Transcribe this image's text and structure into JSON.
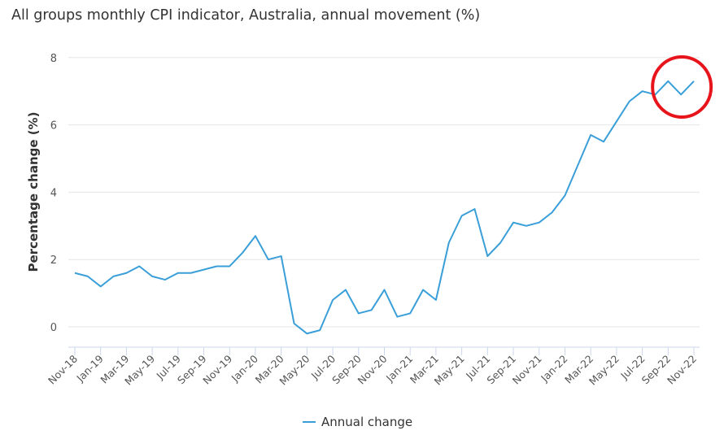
{
  "chart_data": {
    "type": "line",
    "title": "All groups monthly CPI indicator, Australia, annual movement (%)",
    "xlabel": "",
    "ylabel": "Percentage change (%)",
    "ylim": [
      -0.6,
      8
    ],
    "yticks": [
      0,
      2,
      4,
      6,
      8
    ],
    "grid": true,
    "legend_placement": "bottom",
    "x": [
      "Nov-18",
      "Dec-18",
      "Jan-19",
      "Feb-19",
      "Mar-19",
      "Apr-19",
      "May-19",
      "Jun-19",
      "Jul-19",
      "Aug-19",
      "Sep-19",
      "Oct-19",
      "Nov-19",
      "Dec-19",
      "Jan-20",
      "Feb-20",
      "Mar-20",
      "Apr-20",
      "May-20",
      "Jun-20",
      "Jul-20",
      "Aug-20",
      "Sep-20",
      "Oct-20",
      "Nov-20",
      "Dec-20",
      "Jan-21",
      "Feb-21",
      "Mar-21",
      "Apr-21",
      "May-21",
      "Jun-21",
      "Jul-21",
      "Aug-21",
      "Sep-21",
      "Oct-21",
      "Nov-21",
      "Dec-21",
      "Jan-22",
      "Feb-22",
      "Mar-22",
      "Apr-22",
      "May-22",
      "Jun-22",
      "Jul-22",
      "Aug-22",
      "Sep-22",
      "Oct-22",
      "Nov-22"
    ],
    "xtick_labels": [
      "Nov-18",
      "Jan-19",
      "Mar-19",
      "May-19",
      "Jul-19",
      "Sep-19",
      "Nov-19",
      "Jan-20",
      "Mar-20",
      "May-20",
      "Jul-20",
      "Sep-20",
      "Nov-20",
      "Jan-21",
      "Mar-21",
      "May-21",
      "Jul-21",
      "Sep-21",
      "Nov-21",
      "Jan-22",
      "Mar-22",
      "May-22",
      "Jul-22",
      "Sep-22",
      "Nov-22"
    ],
    "series": [
      {
        "name": "Annual change",
        "color": "#3a9fd8",
        "values": [
          1.6,
          1.5,
          1.2,
          1.5,
          1.6,
          1.8,
          1.5,
          1.4,
          1.6,
          1.6,
          1.7,
          1.8,
          1.8,
          2.2,
          2.7,
          2.0,
          2.1,
          0.1,
          -0.2,
          -0.1,
          0.8,
          1.1,
          0.4,
          0.5,
          1.1,
          0.3,
          0.4,
          1.1,
          0.8,
          2.5,
          3.3,
          3.5,
          2.1,
          2.5,
          3.1,
          3.0,
          3.1,
          3.4,
          3.9,
          4.8,
          5.7,
          5.5,
          6.1,
          6.7,
          7.0,
          6.9,
          7.3,
          6.9,
          7.3
        ]
      }
    ],
    "annotation": {
      "type": "circle",
      "color": "#e8141c",
      "highlights": [
        "Sep-22",
        "Oct-22",
        "Nov-22"
      ]
    }
  }
}
